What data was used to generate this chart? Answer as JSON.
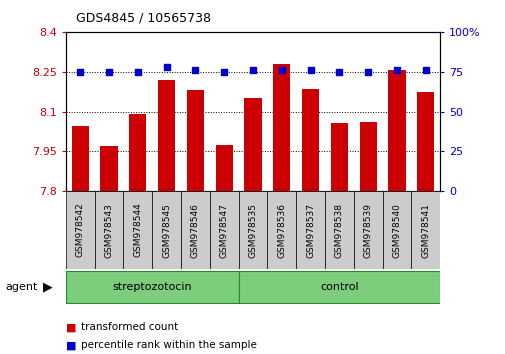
{
  "title": "GDS4845 / 10565738",
  "samples": [
    "GSM978542",
    "GSM978543",
    "GSM978544",
    "GSM978545",
    "GSM978546",
    "GSM978547",
    "GSM978535",
    "GSM978536",
    "GSM978537",
    "GSM978538",
    "GSM978539",
    "GSM978540",
    "GSM978541"
  ],
  "red_values": [
    8.045,
    7.97,
    8.09,
    8.22,
    8.18,
    7.975,
    8.15,
    8.28,
    8.185,
    8.055,
    8.06,
    8.255,
    8.175
  ],
  "blue_values": [
    75,
    75,
    75,
    78,
    76,
    75,
    76,
    76,
    76,
    75,
    75,
    76,
    76
  ],
  "ylim_left": [
    7.8,
    8.4
  ],
  "ylim_right": [
    0,
    100
  ],
  "yticks_left": [
    7.8,
    7.95,
    8.1,
    8.25,
    8.4
  ],
  "ytick_labels_left": [
    "7.8",
    "7.95",
    "8.1",
    "8.25",
    "8.4"
  ],
  "yticks_right": [
    0,
    25,
    50,
    75,
    100
  ],
  "ytick_labels_right": [
    "0",
    "25",
    "50",
    "75",
    "100%"
  ],
  "bar_color": "#CC0000",
  "dot_color": "#0000CC",
  "bar_width": 0.6,
  "legend_red": "transformed count",
  "legend_blue": "percentile rank within the sample",
  "tick_area_color": "#cccccc",
  "group_color": "#7CCD7C",
  "group_border": "#228B22",
  "streptozotocin_range": [
    0,
    5
  ],
  "control_range": [
    6,
    12
  ]
}
